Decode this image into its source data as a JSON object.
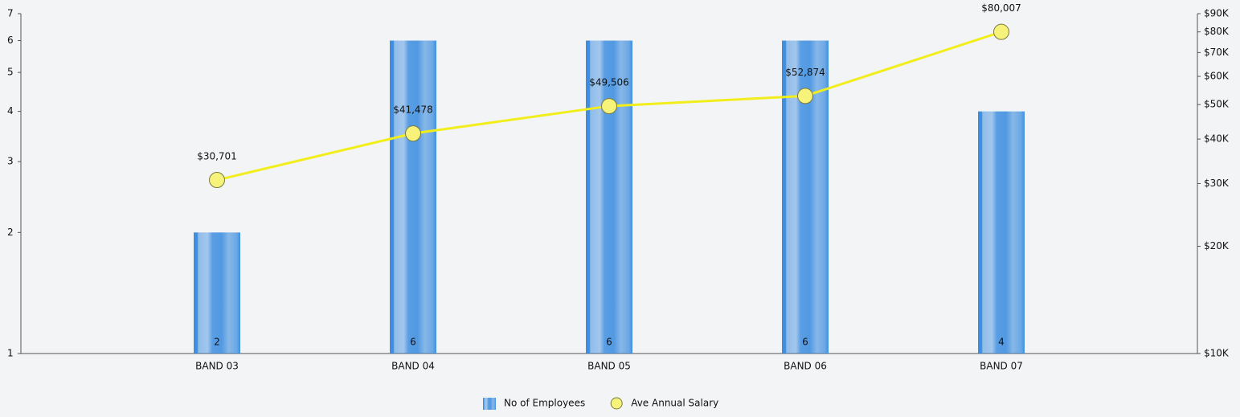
{
  "chart_data": {
    "type": "bar-line",
    "categories": [
      "BAND 03",
      "BAND 04",
      "BAND 05",
      "BAND 06",
      "BAND 07"
    ],
    "series": [
      {
        "name": "No of Employees",
        "type": "bar",
        "axis": "y",
        "color": "#3f8fe0",
        "values": [
          2,
          6,
          6,
          6,
          4
        ]
      },
      {
        "name": "Ave Annual Salary",
        "type": "line",
        "axis": "y2",
        "color": "#f2ee1c",
        "marker_color": "#f6f27a",
        "values": [
          30701,
          41478,
          49506,
          52874,
          80007
        ],
        "value_labels": [
          "$30,701",
          "$41,478",
          "$49,506",
          "$52,874",
          "$80,007"
        ]
      }
    ],
    "ylim": [
      1,
      7
    ],
    "yticks": [
      1,
      2,
      3,
      4,
      5,
      6,
      7
    ],
    "log_y": true,
    "y2lim": [
      10000,
      90000
    ],
    "y2ticks": [
      {
        "value": 10000,
        "label": "$10K"
      },
      {
        "value": 20000,
        "label": "$20K"
      },
      {
        "value": 30000,
        "label": "$30K"
      },
      {
        "value": 40000,
        "label": "$40K"
      },
      {
        "value": 50000,
        "label": "$50K"
      },
      {
        "value": 60000,
        "label": "$60K"
      },
      {
        "value": 70000,
        "label": "$70K"
      },
      {
        "value": 80000,
        "label": "$80K"
      },
      {
        "value": 90000,
        "label": "$90K"
      }
    ],
    "log_y2": true,
    "legend": "bottom"
  }
}
